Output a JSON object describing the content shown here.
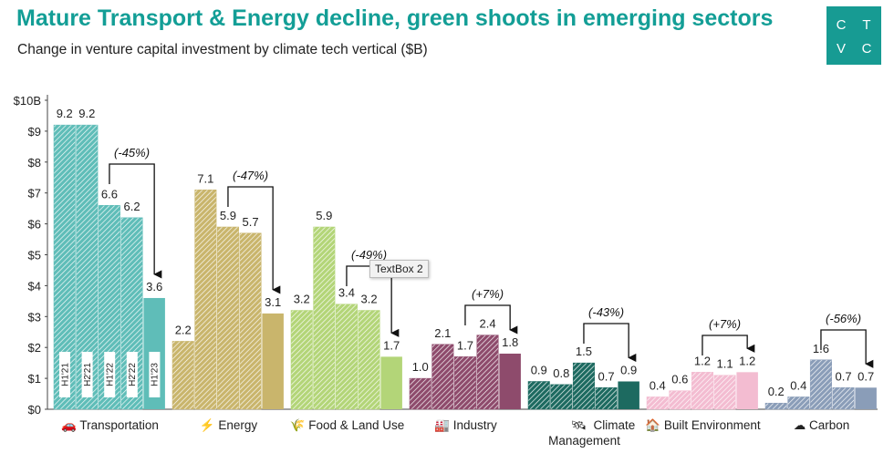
{
  "title": "Mature Transport & Energy decline, green shoots in emerging sectors",
  "subtitle": "Change in venture capital investment by climate tech vertical ($B)",
  "logo": {
    "letters": [
      "C",
      "T",
      "V",
      "C"
    ],
    "color": "#179b93"
  },
  "tooltip": "TextBox 2",
  "chart_data": {
    "type": "bar",
    "ylim": [
      0,
      10
    ],
    "yticks": [
      "$0",
      "$1",
      "$2",
      "$3",
      "$4",
      "$5",
      "$6",
      "$7",
      "$8",
      "$9",
      "$10B"
    ],
    "periods": [
      "H1'21",
      "H2'21",
      "H1'22",
      "H2'22",
      "H1'23"
    ],
    "grid": false,
    "groups": [
      {
        "name": "Transportation",
        "icon": "car-icon",
        "glyph": "🚗",
        "color": "#5fbdb8",
        "values": [
          9.2,
          9.2,
          6.6,
          6.2,
          3.6
        ],
        "change": "(-45%)"
      },
      {
        "name": "Energy",
        "icon": "lightning-icon",
        "glyph": "⚡",
        "color": "#c9b56c",
        "values": [
          2.2,
          7.1,
          5.9,
          5.7,
          3.1
        ],
        "change": "(-47%)"
      },
      {
        "name": "Food & Land Use",
        "icon": "wheat-icon",
        "glyph": "🌾",
        "color": "#b3d578",
        "values": [
          3.2,
          5.9,
          3.4,
          3.2,
          1.7
        ],
        "change": "(-49%)"
      },
      {
        "name": "Industry",
        "icon": "factory-icon",
        "glyph": "🏭",
        "color": "#8e4b6c",
        "values": [
          1.0,
          2.1,
          1.7,
          2.4,
          1.8
        ],
        "change": "(+7%)"
      },
      {
        "name": "Climate Management",
        "icon": "satellite-icon",
        "glyph": "🛰",
        "color": "#1d6a60",
        "values": [
          0.9,
          0.8,
          1.5,
          0.7,
          0.9
        ],
        "change": "(-43%)"
      },
      {
        "name": "Built Environment",
        "icon": "house-icon",
        "glyph": "🏠",
        "color": "#f3bcd1",
        "values": [
          0.4,
          0.6,
          1.2,
          1.1,
          1.2
        ],
        "change": "(+7%)"
      },
      {
        "name": "Carbon",
        "icon": "cloud-icon",
        "glyph": "☁",
        "color": "#8a9db8",
        "values": [
          0.2,
          0.4,
          1.6,
          0.7,
          0.7
        ],
        "change": "(-56%)"
      }
    ]
  }
}
